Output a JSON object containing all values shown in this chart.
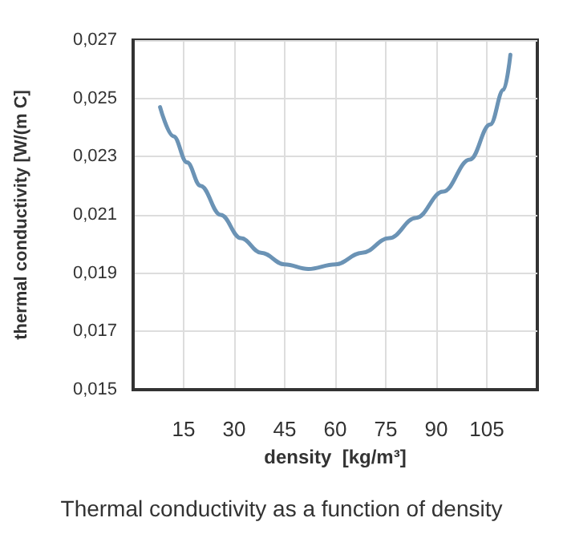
{
  "chart_data": {
    "type": "line",
    "title": "Thermal conductivity as a function of density",
    "xlabel": "density  [kg/m³]",
    "ylabel": "thermal conductivity [W/(m C]",
    "x": [
      8,
      12,
      16,
      20,
      26,
      32,
      38,
      45,
      52,
      60,
      68,
      76,
      84,
      92,
      100,
      106,
      110,
      112
    ],
    "series": [
      {
        "color": "#6b93b5",
        "values": [
          0.0247,
          0.0237,
          0.0228,
          0.022,
          0.021,
          0.0202,
          0.0197,
          0.0193,
          0.01914,
          0.0193,
          0.0197,
          0.0202,
          0.0209,
          0.0218,
          0.0229,
          0.0241,
          0.0253,
          0.0265
        ]
      }
    ],
    "xlim": [
      0,
      120
    ],
    "xticks": [
      15,
      30,
      45,
      60,
      75,
      90,
      105
    ],
    "ylim": [
      0.015,
      0.027
    ],
    "yticks": [
      {
        "value": 0.015,
        "label": "0,015"
      },
      {
        "value": 0.017,
        "label": "0,017"
      },
      {
        "value": 0.019,
        "label": "0,019"
      },
      {
        "value": 0.021,
        "label": "0,021"
      },
      {
        "value": 0.023,
        "label": "0,023"
      },
      {
        "value": 0.025,
        "label": "0,025"
      },
      {
        "value": 0.027,
        "label": "0,027"
      }
    ],
    "grid": true,
    "marker": "none",
    "line_style": "solid"
  }
}
